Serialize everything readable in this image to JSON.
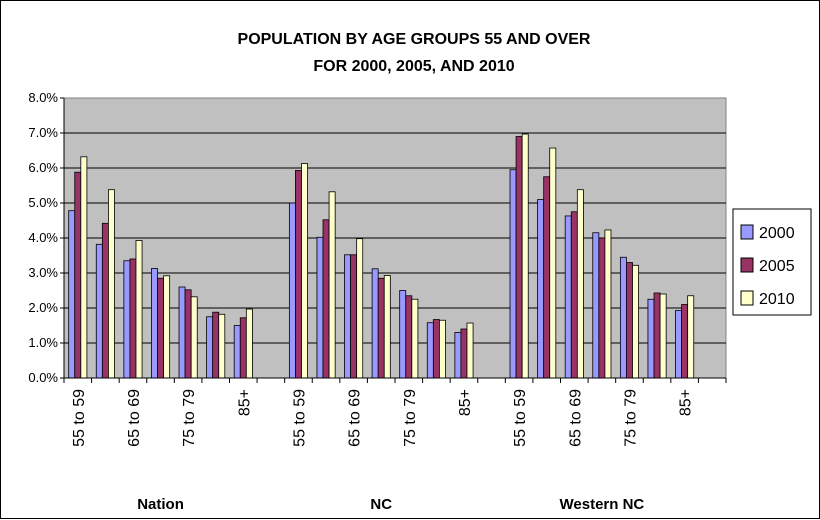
{
  "chart_data": {
    "type": "bar",
    "title_lines": [
      "POPULATION BY AGE GROUPS 55 AND OVER",
      "FOR 2000, 2005, AND 2010"
    ],
    "groups": [
      "Nation",
      "NC",
      "Western NC"
    ],
    "category_labels_per_group": [
      "55 to 59",
      "",
      "65 to 69",
      "",
      "75 to 79",
      "",
      "85+"
    ],
    "ylim": [
      0,
      8
    ],
    "yticks": [
      "0.0%",
      "1.0%",
      "2.0%",
      "3.0%",
      "4.0%",
      "5.0%",
      "6.0%",
      "7.0%",
      "8.0%"
    ],
    "grid": true,
    "legend_position": "right",
    "series": [
      {
        "name": "2000",
        "color": "#9999FF",
        "values": [
          4.78,
          3.82,
          3.35,
          3.13,
          2.6,
          1.75,
          1.5,
          5.0,
          4.02,
          3.52,
          3.12,
          2.5,
          1.58,
          1.3,
          5.95,
          5.1,
          4.63,
          4.15,
          3.45,
          2.25,
          1.93
        ]
      },
      {
        "name": "2005",
        "color": "#993366",
        "values": [
          5.88,
          4.42,
          3.4,
          2.85,
          2.52,
          1.88,
          1.72,
          5.93,
          4.52,
          3.52,
          2.85,
          2.35,
          1.67,
          1.4,
          6.9,
          5.75,
          4.75,
          4.0,
          3.3,
          2.43,
          2.1
        ]
      },
      {
        "name": "2010",
        "color": "#FFFFCC",
        "values": [
          6.32,
          5.38,
          3.93,
          2.92,
          2.32,
          1.82,
          1.97,
          6.13,
          5.32,
          3.98,
          2.93,
          2.25,
          1.65,
          1.57,
          6.97,
          6.57,
          5.38,
          4.23,
          3.22,
          2.4,
          2.35
        ]
      }
    ]
  }
}
